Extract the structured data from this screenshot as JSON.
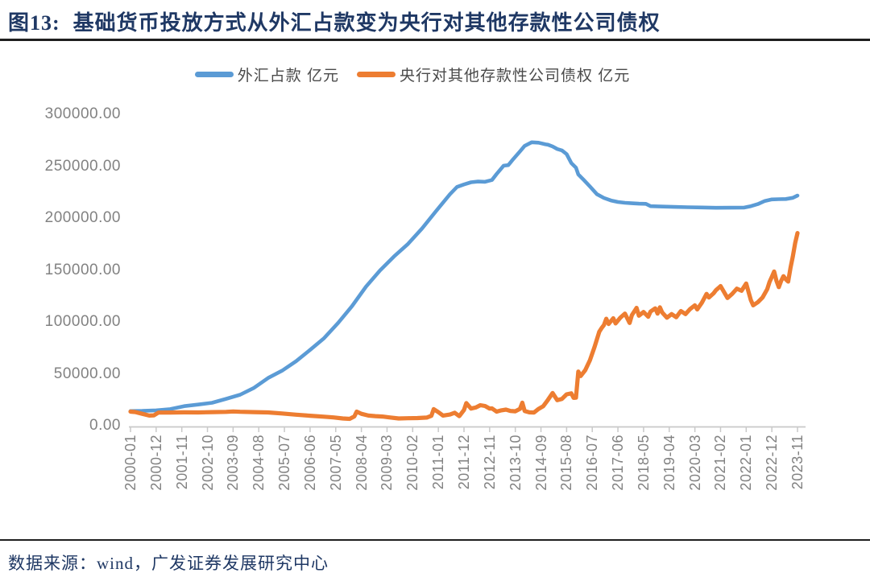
{
  "figure": {
    "title_prefix": "图13:",
    "title": "基础货币投放方式从外汇占款变为央行对其他存款性公司债权",
    "source_note": "数据来源：wind，广发证券发展研究中心"
  },
  "colors": {
    "title_navy": "#1F3864",
    "fx_blue": "#5B9BD5",
    "claims_orange": "#ED7D31",
    "axis_gray": "#C9C9C9",
    "label_gray": "#828282",
    "legend_text": "#4A4A4A",
    "rule_dark": "#1F1F1F"
  },
  "chart_data": {
    "type": "line",
    "title": "基础货币投放方式从外汇占款变为央行对其他存款性公司债权",
    "unit": "亿元",
    "grid": false,
    "legend_position": "top",
    "y_axis": {
      "min": 0,
      "max": 300000,
      "step": 50000,
      "ticks": [
        {
          "value": 300000,
          "label": "300000.00"
        },
        {
          "value": 250000,
          "label": "250000.00"
        },
        {
          "value": 200000,
          "label": "200000.00"
        },
        {
          "value": 150000,
          "label": "150000.00"
        },
        {
          "value": 100000,
          "label": "100000.00"
        },
        {
          "value": 50000,
          "label": "50000.00"
        },
        {
          "value": 0,
          "label": "0.00"
        }
      ]
    },
    "x_axis": {
      "first": "2000-01",
      "last": "2023-11",
      "tick_labels": [
        "2000-01",
        "2000-12",
        "2001-11",
        "2002-10",
        "2003-09",
        "2004-08",
        "2005-07",
        "2006-06",
        "2007-05",
        "2008-04",
        "2009-03",
        "2010-02",
        "2011-01",
        "2011-12",
        "2012-11",
        "2013-10",
        "2014-09",
        "2015-08",
        "2016-07",
        "2017-06",
        "2018-05",
        "2019-04",
        "2020-03",
        "2021-02",
        "2022-01",
        "2022-12",
        "2023-11"
      ]
    },
    "series": [
      {
        "name": "外汇占款 亿元",
        "color": "#5B9BD5",
        "points": [
          [
            "2000-01",
            14100
          ],
          [
            "2000-06",
            14300
          ],
          [
            "2000-12",
            14815
          ],
          [
            "2001-06",
            16000
          ],
          [
            "2001-12",
            18850
          ],
          [
            "2002-06",
            20400
          ],
          [
            "2002-12",
            22107
          ],
          [
            "2003-06",
            25900
          ],
          [
            "2003-12",
            29842
          ],
          [
            "2004-06",
            36500
          ],
          [
            "2004-12",
            45940
          ],
          [
            "2005-06",
            53000
          ],
          [
            "2005-12",
            62140
          ],
          [
            "2006-06",
            73000
          ],
          [
            "2006-12",
            84361
          ],
          [
            "2007-06",
            99000
          ],
          [
            "2007-12",
            115169
          ],
          [
            "2008-06",
            134000
          ],
          [
            "2008-12",
            149624
          ],
          [
            "2009-06",
            163000
          ],
          [
            "2009-12",
            175155
          ],
          [
            "2010-06",
            190000
          ],
          [
            "2010-12",
            206767
          ],
          [
            "2011-06",
            223000
          ],
          [
            "2011-09",
            230000
          ],
          [
            "2011-12",
            232389
          ],
          [
            "2012-03",
            234500
          ],
          [
            "2012-06",
            235200
          ],
          [
            "2012-09",
            235000
          ],
          [
            "2012-12",
            236670
          ],
          [
            "2013-02",
            242500
          ],
          [
            "2013-05",
            250500
          ],
          [
            "2013-07",
            251000
          ],
          [
            "2013-09",
            256500
          ],
          [
            "2013-12",
            264270
          ],
          [
            "2014-02",
            269500
          ],
          [
            "2014-05",
            272999
          ],
          [
            "2014-08",
            272600
          ],
          [
            "2014-11",
            271000
          ],
          [
            "2014-12",
            270681
          ],
          [
            "2015-02",
            269000
          ],
          [
            "2015-04",
            266500
          ],
          [
            "2015-06",
            265200
          ],
          [
            "2015-08",
            261600
          ],
          [
            "2015-10",
            253000
          ],
          [
            "2015-12",
            248538
          ],
          [
            "2016-01",
            242000
          ],
          [
            "2016-03",
            237500
          ],
          [
            "2016-06",
            230500
          ],
          [
            "2016-09",
            223000
          ],
          [
            "2016-12",
            219400
          ],
          [
            "2017-03",
            217000
          ],
          [
            "2017-06",
            215500
          ],
          [
            "2017-09",
            214700
          ],
          [
            "2017-12",
            214300
          ],
          [
            "2018-03",
            213900
          ],
          [
            "2018-06",
            213700
          ],
          [
            "2018-08",
            211500
          ],
          [
            "2018-12",
            211200
          ],
          [
            "2019-06",
            210800
          ],
          [
            "2019-12",
            210500
          ],
          [
            "2020-06",
            210200
          ],
          [
            "2020-12",
            209900
          ],
          [
            "2021-06",
            210000
          ],
          [
            "2021-12",
            210100
          ],
          [
            "2022-03",
            211500
          ],
          [
            "2022-06",
            213500
          ],
          [
            "2022-09",
            216500
          ],
          [
            "2022-12",
            218000
          ],
          [
            "2023-03",
            218200
          ],
          [
            "2023-06",
            218400
          ],
          [
            "2023-09",
            219500
          ],
          [
            "2023-11",
            221700
          ]
        ]
      },
      {
        "name": "央行对其他存款性公司债权 亿元",
        "color": "#ED7D31",
        "points": [
          [
            "2000-01",
            13600
          ],
          [
            "2000-03",
            13200
          ],
          [
            "2000-06",
            11500
          ],
          [
            "2000-09",
            9800
          ],
          [
            "2000-11",
            10000
          ],
          [
            "2001-01",
            12600
          ],
          [
            "2001-06",
            12700
          ],
          [
            "2001-12",
            12900
          ],
          [
            "2002-06",
            12800
          ],
          [
            "2002-12",
            13100
          ],
          [
            "2003-06",
            13300
          ],
          [
            "2003-09",
            13700
          ],
          [
            "2003-12",
            13400
          ],
          [
            "2004-06",
            13100
          ],
          [
            "2004-12",
            12800
          ],
          [
            "2005-06",
            11800
          ],
          [
            "2005-12",
            10600
          ],
          [
            "2006-06",
            9600
          ],
          [
            "2006-12",
            8700
          ],
          [
            "2007-04",
            8000
          ],
          [
            "2007-08",
            7000
          ],
          [
            "2007-11",
            6600
          ],
          [
            "2008-01",
            9000
          ],
          [
            "2008-02",
            13600
          ],
          [
            "2008-04",
            11500
          ],
          [
            "2008-07",
            9800
          ],
          [
            "2008-10",
            9200
          ],
          [
            "2009-01",
            8800
          ],
          [
            "2009-04",
            8000
          ],
          [
            "2009-08",
            7000
          ],
          [
            "2009-12",
            7200
          ],
          [
            "2010-04",
            7400
          ],
          [
            "2010-08",
            7800
          ],
          [
            "2010-10",
            9500
          ],
          [
            "2010-11",
            16000
          ],
          [
            "2011-01",
            13000
          ],
          [
            "2011-03",
            9800
          ],
          [
            "2011-06",
            10800
          ],
          [
            "2011-08",
            12500
          ],
          [
            "2011-10",
            9200
          ],
          [
            "2011-12",
            15200
          ],
          [
            "2012-01",
            21800
          ],
          [
            "2012-03",
            16500
          ],
          [
            "2012-05",
            17500
          ],
          [
            "2012-07",
            19800
          ],
          [
            "2012-09",
            19000
          ],
          [
            "2012-11",
            16500
          ],
          [
            "2012-12",
            16700
          ],
          [
            "2013-02",
            13600
          ],
          [
            "2013-04",
            14800
          ],
          [
            "2013-06",
            15500
          ],
          [
            "2013-08",
            14200
          ],
          [
            "2013-10",
            13900
          ],
          [
            "2013-12",
            16200
          ],
          [
            "2014-01",
            22200
          ],
          [
            "2014-02",
            14200
          ],
          [
            "2014-04",
            12900
          ],
          [
            "2014-06",
            12700
          ],
          [
            "2014-08",
            16200
          ],
          [
            "2014-10",
            18800
          ],
          [
            "2014-12",
            24900
          ],
          [
            "2015-02",
            31500
          ],
          [
            "2015-04",
            24600
          ],
          [
            "2015-06",
            25800
          ],
          [
            "2015-08",
            30200
          ],
          [
            "2015-10",
            31200
          ],
          [
            "2015-11",
            26800
          ],
          [
            "2015-12",
            27000
          ],
          [
            "2016-01",
            52200
          ],
          [
            "2016-02",
            47800
          ],
          [
            "2016-04",
            53500
          ],
          [
            "2016-06",
            63000
          ],
          [
            "2016-08",
            76000
          ],
          [
            "2016-10",
            90500
          ],
          [
            "2016-11",
            94000
          ],
          [
            "2016-12",
            97000
          ],
          [
            "2017-01",
            103000
          ],
          [
            "2017-02",
            98000
          ],
          [
            "2017-04",
            103500
          ],
          [
            "2017-05",
            98500
          ],
          [
            "2017-07",
            104000
          ],
          [
            "2017-09",
            108000
          ],
          [
            "2017-11",
            99000
          ],
          [
            "2017-12",
            106500
          ],
          [
            "2018-02",
            113500
          ],
          [
            "2018-03",
            106000
          ],
          [
            "2018-05",
            109500
          ],
          [
            "2018-07",
            105000
          ],
          [
            "2018-08",
            110000
          ],
          [
            "2018-10",
            113000
          ],
          [
            "2018-11",
            108000
          ],
          [
            "2018-12",
            114000
          ],
          [
            "2019-01",
            109000
          ],
          [
            "2019-03",
            104000
          ],
          [
            "2019-05",
            107500
          ],
          [
            "2019-07",
            104500
          ],
          [
            "2019-09",
            110500
          ],
          [
            "2019-11",
            107500
          ],
          [
            "2020-01",
            112500
          ],
          [
            "2020-03",
            116000
          ],
          [
            "2020-04",
            112000
          ],
          [
            "2020-06",
            118500
          ],
          [
            "2020-08",
            127000
          ],
          [
            "2020-09",
            123500
          ],
          [
            "2020-11",
            127500
          ],
          [
            "2020-12",
            130500
          ],
          [
            "2021-02",
            134500
          ],
          [
            "2021-05",
            123000
          ],
          [
            "2021-07",
            127000
          ],
          [
            "2021-09",
            132000
          ],
          [
            "2021-11",
            130000
          ],
          [
            "2022-01",
            137000
          ],
          [
            "2022-03",
            121000
          ],
          [
            "2022-04",
            116000
          ],
          [
            "2022-06",
            119000
          ],
          [
            "2022-08",
            123500
          ],
          [
            "2022-10",
            131500
          ],
          [
            "2022-11",
            138500
          ],
          [
            "2022-12",
            143500
          ],
          [
            "2023-01",
            148500
          ],
          [
            "2023-02",
            139500
          ],
          [
            "2023-03",
            133500
          ],
          [
            "2023-04",
            139500
          ],
          [
            "2023-05",
            144000
          ],
          [
            "2023-06",
            141000
          ],
          [
            "2023-07",
            138800
          ],
          [
            "2023-08",
            152000
          ],
          [
            "2023-09",
            163000
          ],
          [
            "2023-10",
            176000
          ],
          [
            "2023-11",
            185600
          ]
        ]
      }
    ]
  }
}
